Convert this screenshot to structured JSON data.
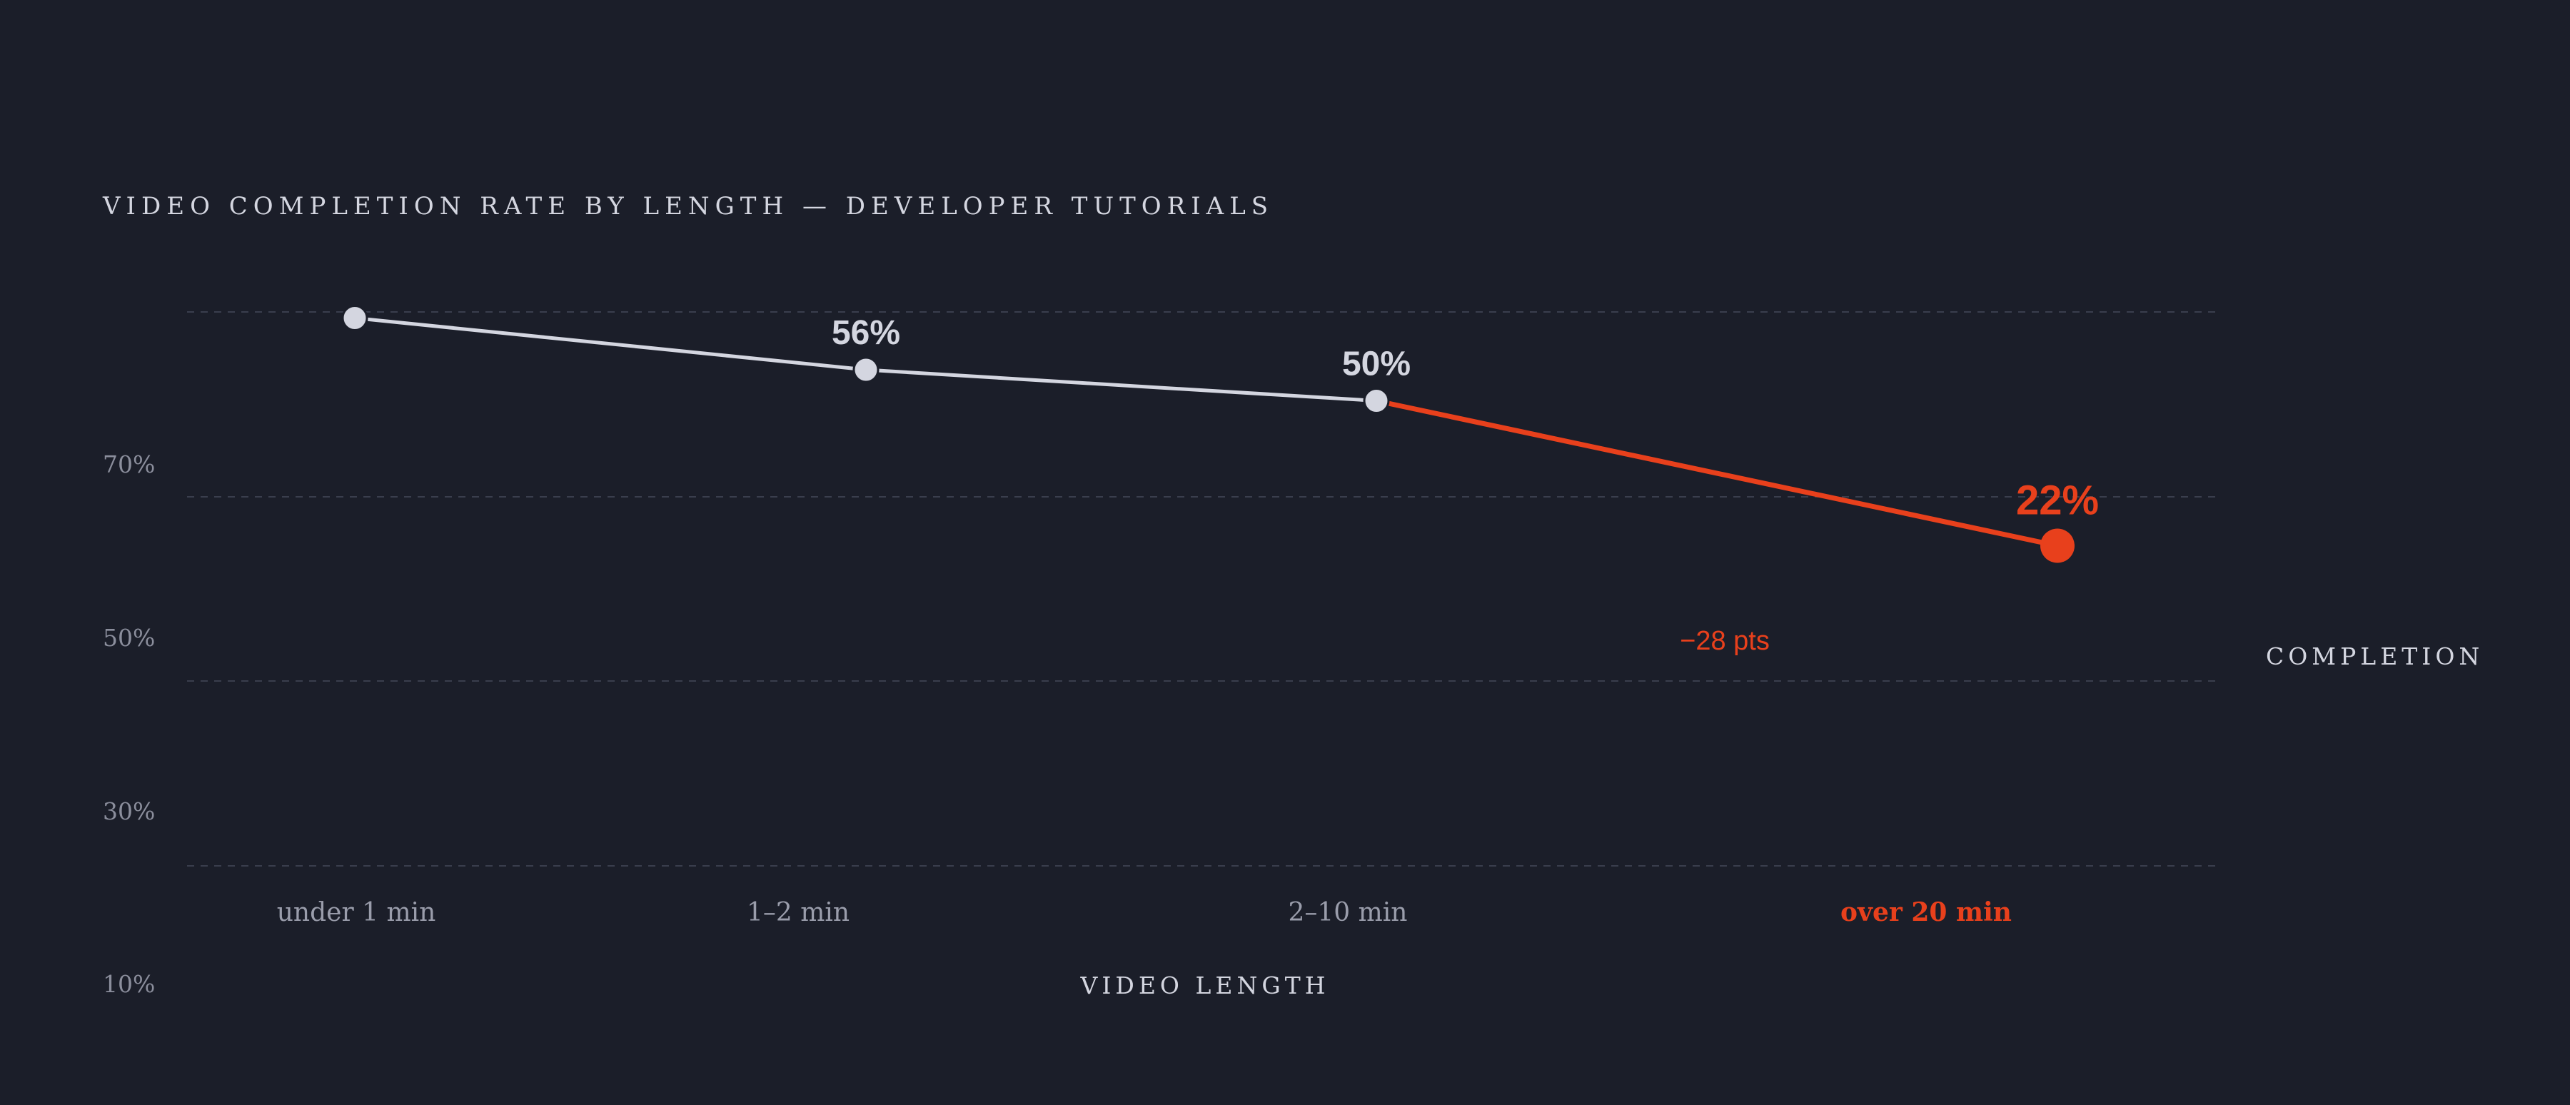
{
  "chart_data": {
    "type": "line",
    "title": "VIDEO COMPLETION RATE BY LENGTH — DEVELOPER TUTORIALS",
    "xlabel": "VIDEO LENGTH",
    "ylabel": "COMPLETION",
    "categories": [
      "under 1 min",
      "1–2 min",
      "2–10 min",
      "over 20 min"
    ],
    "values": [
      66,
      56,
      50,
      22
    ],
    "data_labels": [
      "",
      "56%",
      "50%",
      "22%"
    ],
    "highlight_index": 3,
    "highlight_from_index": 2,
    "annotation": "−28 pts",
    "y_ticks": [
      "70%",
      "50%",
      "30%",
      "10%"
    ],
    "grid": true,
    "colors": {
      "background": "#1b1e29",
      "series": "#d4d6e0",
      "highlight": "#e8401c",
      "grid": "#3a3e4d"
    }
  }
}
